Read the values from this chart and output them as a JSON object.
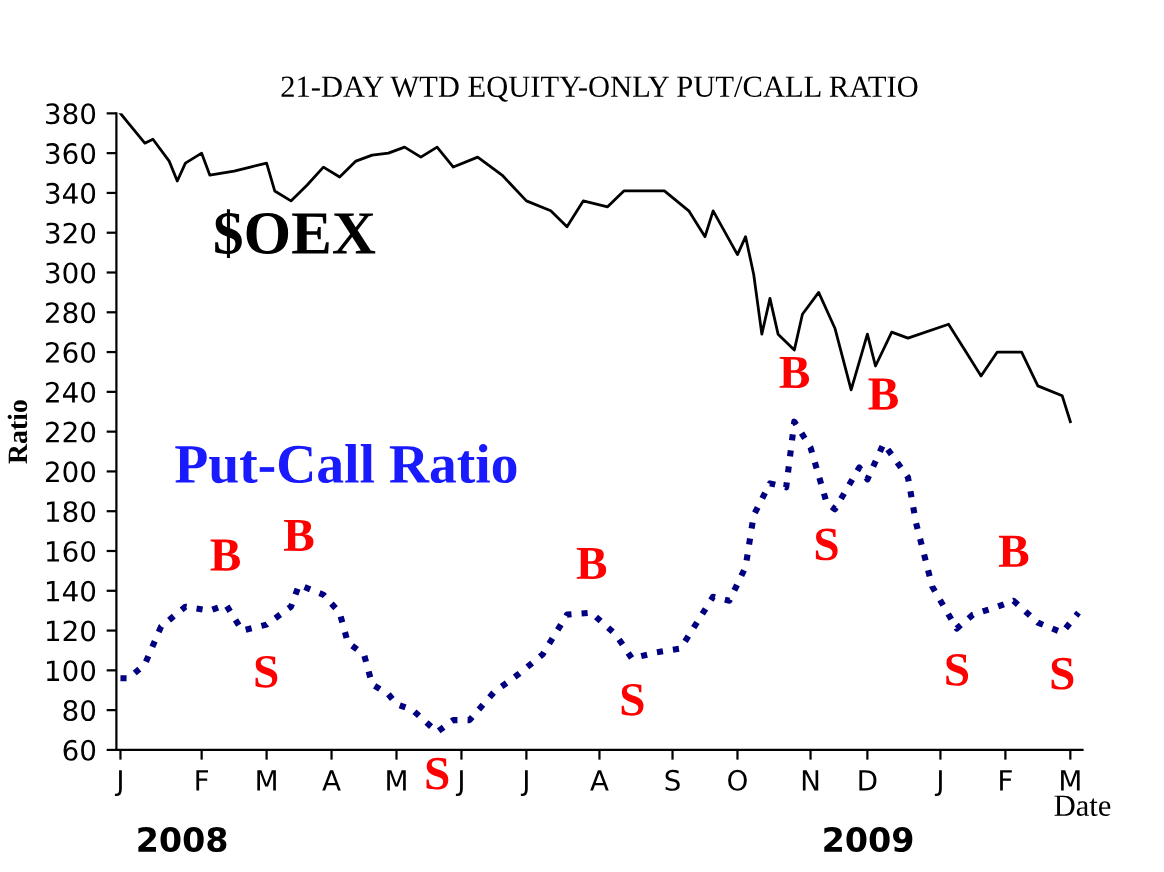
{
  "chart_data": {
    "type": "line",
    "title": "21-DAY WTD EQUITY-ONLY PUT/CALL RATIO",
    "xlabel": "Date",
    "ylabel": "Ratio",
    "ylim": [
      60,
      380
    ],
    "yticks": [
      60,
      80,
      100,
      120,
      140,
      160,
      180,
      200,
      220,
      240,
      260,
      280,
      300,
      320,
      340,
      360,
      380
    ],
    "categories": [
      "J",
      null,
      null,
      null,
      null,
      null,
      null,
      null,
      null,
      null,
      "F",
      null,
      null,
      null,
      null,
      null,
      null,
      null,
      "M",
      null,
      null,
      null,
      null,
      null,
      null,
      null,
      "A",
      null,
      null,
      null,
      null,
      null,
      null,
      null,
      "M",
      null,
      null,
      null,
      null,
      null,
      null,
      null,
      "J",
      null,
      null,
      null,
      null,
      null,
      null,
      null,
      "J",
      null,
      null,
      null,
      null,
      null,
      null,
      null,
      null,
      "A",
      null,
      null,
      null,
      null,
      null,
      null,
      null,
      null,
      "S",
      null,
      null,
      null,
      null,
      null,
      null,
      null,
      "O",
      null,
      null,
      null,
      null,
      null,
      null,
      null,
      null,
      "N",
      null,
      null,
      null,
      null,
      null,
      null,
      "D",
      null,
      null,
      null,
      null,
      null,
      null,
      null,
      null,
      "J",
      null,
      null,
      null,
      null,
      null,
      null,
      null,
      "F",
      null,
      null,
      null,
      null,
      null,
      null,
      null,
      "M",
      null
    ],
    "grid": false,
    "legend": false,
    "marker": "none",
    "series": [
      {
        "name": "$OEX",
        "color": "#000000",
        "line_style": "solid",
        "values": [
          380,
          375,
          null,
          365,
          367,
          null,
          356,
          346,
          355,
          null,
          360,
          349,
          null,
          null,
          351,
          null,
          353,
          null,
          355,
          341,
          null,
          336,
          null,
          344,
          null,
          353,
          null,
          348,
          null,
          356,
          null,
          359,
          null,
          360,
          null,
          363,
          null,
          358,
          null,
          363,
          null,
          353,
          null,
          null,
          358,
          null,
          null,
          349,
          null,
          null,
          336,
          null,
          null,
          331,
          null,
          323,
          null,
          336,
          null,
          null,
          333,
          null,
          341,
          null,
          null,
          null,
          null,
          341,
          null,
          null,
          331,
          null,
          318,
          331,
          null,
          null,
          309,
          318,
          299,
          269,
          287,
          269,
          null,
          261,
          279,
          null,
          290,
          null,
          272,
          null,
          241,
          null,
          269,
          253,
          null,
          270,
          null,
          267,
          null,
          null,
          null,
          null,
          274,
          null,
          261,
          null,
          248,
          null,
          260,
          null,
          null,
          260,
          null,
          243,
          null,
          null,
          238,
          225,
          null
        ]
      },
      {
        "name": "Put-Call Ratio",
        "color": "#000080",
        "line_style": "dotted",
        "values": [
          96,
          96,
          null,
          103,
          null,
          122,
          null,
          null,
          132,
          null,
          null,
          130,
          null,
          133,
          null,
          120,
          null,
          null,
          123,
          null,
          null,
          132,
          143,
          null,
          null,
          138,
          null,
          129,
          114,
          null,
          108,
          93,
          null,
          88,
          83,
          null,
          80,
          null,
          null,
          69,
          null,
          75,
          null,
          75,
          null,
          null,
          89,
          null,
          null,
          98,
          null,
          null,
          108,
          null,
          null,
          128,
          null,
          null,
          129,
          null,
          null,
          118,
          null,
          106,
          null,
          null,
          109,
          null,
          null,
          111,
          null,
          124,
          null,
          137,
          null,
          135,
          null,
          152,
          178,
          null,
          194,
          null,
          192,
          225,
          null,
          212,
          null,
          184,
          181,
          null,
          null,
          202,
          196,
          null,
          214,
          null,
          null,
          197,
          174,
          null,
          142,
          null,
          null,
          121,
          null,
          128,
          null,
          null,
          132,
          null,
          135,
          null,
          null,
          124,
          null,
          null,
          119,
          null,
          129
        ]
      }
    ],
    "annotations": [
      "B",
      "S",
      "B",
      "S",
      "B",
      "S",
      "B",
      "S",
      "B",
      "S",
      "B",
      "S",
      "2008",
      "2009"
    ]
  }
}
